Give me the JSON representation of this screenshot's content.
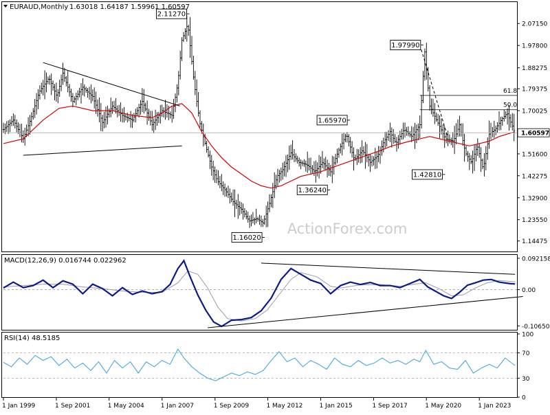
{
  "header": {
    "symbol": "EURAUD,Monthly",
    "ohlc": "1.63018 1.64187 1.59961 1.60597"
  },
  "watermark": "ActionForex.com",
  "colors": {
    "price": "#000000",
    "ma": "#d40000",
    "macd": "#0a1a8a",
    "signal": "#9a9aaa",
    "rsi": "#4aa8e0",
    "trend": "#000000",
    "fib": "#000000",
    "grid_dash": "#a0a0a0"
  },
  "chart_data": [
    {
      "type": "line",
      "panel": "price",
      "title": "EURAUD,Monthly",
      "current_price_label": "1.60597",
      "y_ticks": [
        "2.07150",
        "1.97800",
        "1.88275",
        "1.79375",
        "1.70025",
        "1.60597",
        "1.51600",
        "1.42275",
        "1.32900",
        "1.23550",
        "1.14475"
      ],
      "x_tick_labels": [
        "1 Jan 1999",
        "1 Sep 2001",
        "1 May 2004",
        "1 Jan 2007",
        "1 Sep 2009",
        "1 May 2012",
        "1 Jan 2015",
        "1 Sep 2017",
        "1 May 2020",
        "1 Jan 2023"
      ],
      "x_tick_years": [
        1999.0,
        2001.67,
        2004.33,
        2007.0,
        2009.67,
        2012.33,
        2015.0,
        2017.67,
        2020.33,
        2023.0
      ],
      "x_range": [
        1999.0,
        2024.9
      ],
      "ylim": [
        1.1,
        2.16
      ],
      "series": [
        {
          "role": "price",
          "x": [
            1999.0,
            1999.5,
            2000.0,
            2000.4,
            2000.8,
            2001.3,
            2001.7,
            2002.0,
            2002.5,
            2003.0,
            2003.5,
            2004.0,
            2004.5,
            2005.0,
            2005.5,
            2006.0,
            2006.5,
            2007.0,
            2007.5,
            2007.8,
            2008.0,
            2008.3,
            2008.6,
            2008.9,
            2009.2,
            2009.5,
            2009.8,
            2010.2,
            2010.6,
            2011.0,
            2011.4,
            2011.8,
            2012.1,
            2012.4,
            2012.8,
            2013.1,
            2013.5,
            2013.9,
            2014.3,
            2014.7,
            2015.1,
            2015.5,
            2015.9,
            2016.3,
            2016.7,
            2017.1,
            2017.5,
            2017.9,
            2018.2,
            2018.5,
            2018.8,
            2019.2,
            2019.6,
            2020.0,
            2020.25,
            2020.5,
            2020.9,
            2021.3,
            2021.7,
            2022.0,
            2022.3,
            2022.6,
            2022.9,
            2023.2,
            2023.5,
            2023.8,
            2024.1,
            2024.4,
            2024.8
          ],
          "values": [
            1.62,
            1.66,
            1.58,
            1.67,
            1.78,
            1.84,
            1.76,
            1.86,
            1.74,
            1.8,
            1.76,
            1.65,
            1.72,
            1.68,
            1.66,
            1.74,
            1.64,
            1.7,
            1.68,
            1.82,
            2.0,
            2.07,
            1.83,
            1.65,
            1.55,
            1.46,
            1.4,
            1.36,
            1.31,
            1.28,
            1.23,
            1.24,
            1.22,
            1.3,
            1.42,
            1.45,
            1.52,
            1.48,
            1.47,
            1.44,
            1.48,
            1.44,
            1.53,
            1.6,
            1.49,
            1.53,
            1.48,
            1.51,
            1.57,
            1.61,
            1.56,
            1.62,
            1.59,
            1.64,
            1.95,
            1.72,
            1.65,
            1.58,
            1.57,
            1.64,
            1.52,
            1.48,
            1.55,
            1.45,
            1.6,
            1.62,
            1.66,
            1.69,
            1.60597
          ]
        },
        {
          "role": "moving_average",
          "x": [
            1999.0,
            2000.0,
            2001.0,
            2001.8,
            2002.5,
            2003.5,
            2004.5,
            2005.5,
            2006.5,
            2007.0,
            2007.5,
            2008.0,
            2008.5,
            2009.0,
            2009.5,
            2010.0,
            2010.5,
            2011.0,
            2011.5,
            2012.0,
            2012.5,
            2013.0,
            2013.5,
            2014.0,
            2015.0,
            2016.0,
            2017.0,
            2018.0,
            2018.6,
            2019.5,
            2020.0,
            2020.5,
            2021.0,
            2021.5,
            2022.0,
            2022.5,
            2023.0,
            2023.5,
            2024.0,
            2024.8
          ],
          "values": [
            1.56,
            1.58,
            1.66,
            1.71,
            1.72,
            1.7,
            1.7,
            1.68,
            1.67,
            1.69,
            1.72,
            1.73,
            1.69,
            1.61,
            1.55,
            1.5,
            1.46,
            1.43,
            1.4,
            1.38,
            1.37,
            1.38,
            1.4,
            1.42,
            1.44,
            1.47,
            1.5,
            1.53,
            1.55,
            1.57,
            1.58,
            1.59,
            1.58,
            1.57,
            1.56,
            1.55,
            1.56,
            1.57,
            1.59,
            1.61
          ]
        }
      ],
      "annotations": [
        {
          "text": "2.11270",
          "year": 2008.1,
          "price": 2.1127
        },
        {
          "text": "1.97990",
          "year": 2019.9,
          "price": 1.9799
        },
        {
          "text": "1.65970",
          "year": 2016.2,
          "price": 1.6597
        },
        {
          "text": "1.36240",
          "year": 2015.2,
          "price": 1.3624
        },
        {
          "text": "1.42810",
          "year": 2021.0,
          "price": 1.4281
        },
        {
          "text": "1.16020",
          "year": 2011.9,
          "price": 1.1602
        }
      ],
      "fib_levels": [
        {
          "label": "61.8",
          "price": 1.765,
          "from_year": 2020.0
        },
        {
          "label": "50.0",
          "price": 1.704,
          "from_year": 2020.0
        }
      ],
      "trendlines": [
        {
          "from": [
            2001.0,
            1.905
          ],
          "to": [
            2007.9,
            1.72
          ],
          "style": "solid"
        },
        {
          "from": [
            2000.0,
            1.51
          ],
          "to": [
            2008.0,
            1.55
          ],
          "style": "solid"
        },
        {
          "from": [
            2020.0,
            1.98
          ],
          "to": [
            2021.4,
            1.59
          ],
          "style": "dashed"
        }
      ]
    },
    {
      "type": "line",
      "panel": "macd",
      "title": "MACD(12,26,9) 0.016744 0.022962",
      "y_ticks": [
        "0.092158",
        "0.00",
        "-0.106503"
      ],
      "ylim": [
        -0.118,
        0.1
      ],
      "series": [
        {
          "role": "macd",
          "x": [
            1999.0,
            1999.5,
            2000.0,
            2000.5,
            2001.0,
            2001.5,
            2002.0,
            2002.5,
            2003.0,
            2003.5,
            2004.0,
            2004.5,
            2005.0,
            2005.5,
            2006.0,
            2006.5,
            2007.0,
            2007.4,
            2007.8,
            2008.1,
            2008.4,
            2008.8,
            2009.2,
            2009.6,
            2010.0,
            2010.5,
            2011.0,
            2011.5,
            2012.0,
            2012.5,
            2013.0,
            2013.5,
            2014.0,
            2014.5,
            2015.0,
            2015.5,
            2016.0,
            2016.5,
            2017.0,
            2017.5,
            2018.0,
            2018.5,
            2019.0,
            2019.5,
            2020.0,
            2020.4,
            2020.8,
            2021.2,
            2021.6,
            2022.0,
            2022.4,
            2022.8,
            2023.2,
            2023.6,
            2024.0,
            2024.5,
            2024.8
          ],
          "values": [
            0.005,
            0.022,
            0.006,
            0.012,
            0.028,
            0.006,
            0.026,
            0.016,
            -0.012,
            0.016,
            0.003,
            -0.018,
            0.006,
            -0.014,
            -0.004,
            -0.012,
            -0.006,
            0.015,
            0.062,
            0.085,
            0.04,
            -0.015,
            -0.06,
            -0.095,
            -0.108,
            -0.09,
            -0.088,
            -0.082,
            -0.062,
            -0.025,
            0.03,
            0.062,
            0.045,
            0.028,
            0.018,
            -0.012,
            0.012,
            0.022,
            0.015,
            0.021,
            0.012,
            0.012,
            0.006,
            0.018,
            0.03,
            0.008,
            -0.005,
            -0.018,
            -0.026,
            -0.008,
            0.013,
            0.02,
            0.028,
            0.03,
            0.022,
            0.018,
            0.0167
          ]
        },
        {
          "role": "signal",
          "x": [
            1999.0,
            2000.0,
            2001.0,
            2002.0,
            2003.0,
            2004.0,
            2005.0,
            2006.0,
            2007.0,
            2007.8,
            2008.3,
            2008.8,
            2009.3,
            2009.8,
            2010.3,
            2011.0,
            2011.7,
            2012.3,
            2012.9,
            2013.5,
            2014.0,
            2014.8,
            2015.5,
            2016.0,
            2017.0,
            2018.0,
            2019.0,
            2019.7,
            2020.3,
            2021.0,
            2021.6,
            2022.2,
            2022.8,
            2023.4,
            2024.0,
            2024.8
          ],
          "values": [
            0.008,
            0.012,
            0.016,
            0.016,
            0.008,
            0.003,
            -0.004,
            -0.008,
            -0.008,
            0.02,
            0.055,
            0.045,
            0.005,
            -0.05,
            -0.085,
            -0.092,
            -0.085,
            -0.06,
            -0.015,
            0.03,
            0.05,
            0.038,
            0.01,
            0.005,
            0.014,
            0.015,
            0.01,
            0.016,
            0.02,
            0.002,
            -0.018,
            -0.015,
            0.005,
            0.02,
            0.027,
            0.023
          ]
        }
      ],
      "trendlines": [
        {
          "from": [
            2012.0,
            0.078
          ],
          "to": [
            2024.8,
            0.045
          ],
          "style": "solid"
        },
        {
          "from": [
            2009.3,
            -0.112
          ],
          "to": [
            2025.2,
            -0.02
          ],
          "style": "solid"
        }
      ]
    },
    {
      "type": "line",
      "panel": "rsi",
      "title": "RSI(14) 48.5185",
      "y_ticks": [
        "100",
        "70",
        "30",
        "0"
      ],
      "ylim": [
        0,
        100
      ],
      "series": [
        {
          "role": "rsi",
          "x": [
            1999.0,
            1999.4,
            1999.8,
            2000.2,
            2000.6,
            2001.0,
            2001.4,
            2001.8,
            2002.2,
            2002.6,
            2003.0,
            2003.4,
            2003.8,
            2004.2,
            2004.6,
            2005.0,
            2005.4,
            2005.8,
            2006.2,
            2006.6,
            2007.0,
            2007.4,
            2007.8,
            2008.1,
            2008.5,
            2008.9,
            2009.3,
            2009.7,
            2010.1,
            2010.5,
            2010.9,
            2011.3,
            2011.7,
            2012.1,
            2012.5,
            2012.9,
            2013.3,
            2013.7,
            2014.1,
            2014.5,
            2014.9,
            2015.3,
            2015.7,
            2016.1,
            2016.5,
            2016.9,
            2017.3,
            2017.7,
            2018.1,
            2018.5,
            2018.9,
            2019.3,
            2019.7,
            2020.0,
            2020.3,
            2020.7,
            2021.1,
            2021.5,
            2021.9,
            2022.3,
            2022.7,
            2023.1,
            2023.5,
            2023.9,
            2024.3,
            2024.8
          ],
          "values": [
            55,
            48,
            62,
            52,
            66,
            58,
            64,
            50,
            60,
            46,
            54,
            42,
            56,
            38,
            58,
            46,
            56,
            38,
            56,
            48,
            58,
            52,
            76,
            62,
            48,
            38,
            30,
            26,
            32,
            38,
            34,
            40,
            36,
            42,
            58,
            72,
            56,
            62,
            48,
            58,
            52,
            44,
            62,
            52,
            48,
            58,
            50,
            54,
            62,
            54,
            58,
            52,
            60,
            56,
            74,
            52,
            56,
            46,
            44,
            58,
            38,
            46,
            52,
            46,
            62,
            50
          ]
        }
      ],
      "reference_lines": [
        70,
        30
      ]
    }
  ]
}
